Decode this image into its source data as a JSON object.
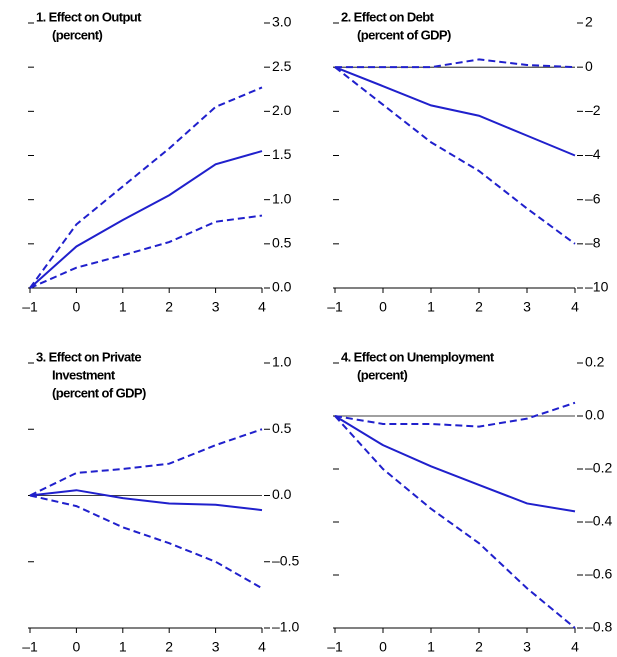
{
  "chart_data": [
    {
      "type": "line",
      "title": [
        "1. Effect on Output",
        "(percent)"
      ],
      "x": [
        -1,
        0,
        1,
        2,
        3,
        4
      ],
      "xlim": [
        -1,
        4
      ],
      "xticks": [
        {
          "value": -1,
          "label": "–1"
        },
        0,
        1,
        2,
        3,
        4
      ],
      "ylim": [
        0,
        3
      ],
      "yticks": [
        {
          "value": 0,
          "label": "0.0"
        },
        0.5,
        {
          "value": 1,
          "label": "1.0"
        },
        1.5,
        {
          "value": 2,
          "label": "2.0"
        },
        2.5,
        {
          "value": 3,
          "label": "3.0"
        }
      ],
      "zero_line": false,
      "series": [
        {
          "color": "#2020cc",
          "dashed": false,
          "values": [
            0,
            0.47,
            0.77,
            1.05,
            1.4,
            1.55
          ]
        },
        {
          "color": "#2020cc",
          "dashed": true,
          "values": [
            0,
            0.72,
            1.15,
            1.58,
            2.05,
            2.27
          ]
        },
        {
          "color": "#2020cc",
          "dashed": true,
          "values": [
            0,
            0.23,
            0.37,
            0.52,
            0.75,
            0.82
          ]
        }
      ]
    },
    {
      "type": "line",
      "title": [
        "2. Effect on Debt",
        "(percent of GDP)"
      ],
      "x": [
        -1,
        0,
        1,
        2,
        3,
        4
      ],
      "xlim": [
        -1,
        4
      ],
      "xticks": [
        {
          "value": -1,
          "label": "–1"
        },
        0,
        1,
        2,
        3,
        4
      ],
      "ylim": [
        -10,
        2
      ],
      "yticks": [
        {
          "value": -10,
          "label": "–10"
        },
        {
          "value": -8,
          "label": "–8"
        },
        {
          "value": -6,
          "label": "–6"
        },
        {
          "value": -4,
          "label": "–4"
        },
        {
          "value": -2,
          "label": "–2"
        },
        0,
        2
      ],
      "zero_line": true,
      "series": [
        {
          "color": "#2020cc",
          "dashed": false,
          "values": [
            0,
            -0.86,
            -1.73,
            -2.2,
            -3.1,
            -4.0
          ]
        },
        {
          "color": "#2020cc",
          "dashed": true,
          "values": [
            0,
            0,
            0,
            0.35,
            0.1,
            0
          ]
        },
        {
          "color": "#2020cc",
          "dashed": true,
          "values": [
            0,
            -1.7,
            -3.4,
            -4.7,
            -6.4,
            -8.0
          ]
        }
      ]
    },
    {
      "type": "line",
      "title": [
        "3. Effect on Private",
        "Investment",
        "(percent of GDP)"
      ],
      "x": [
        -1,
        0,
        1,
        2,
        3,
        4
      ],
      "xlim": [
        -1,
        4
      ],
      "xticks": [
        {
          "value": -1,
          "label": "–1"
        },
        0,
        1,
        2,
        3,
        4
      ],
      "ylim": [
        -1,
        1
      ],
      "yticks": [
        {
          "value": -1,
          "label": "–1.0"
        },
        {
          "value": -0.5,
          "label": "–0.5"
        },
        {
          "value": 0,
          "label": "0.0"
        },
        0.5,
        {
          "value": 1,
          "label": "1.0"
        }
      ],
      "zero_line": true,
      "series": [
        {
          "color": "#2020cc",
          "dashed": false,
          "values": [
            0,
            0.04,
            -0.02,
            -0.06,
            -0.07,
            -0.11
          ]
        },
        {
          "color": "#2020cc",
          "dashed": true,
          "values": [
            0,
            0.17,
            0.2,
            0.24,
            0.38,
            0.5
          ]
        },
        {
          "color": "#2020cc",
          "dashed": true,
          "values": [
            0,
            -0.08,
            -0.24,
            -0.36,
            -0.5,
            -0.7
          ]
        }
      ]
    },
    {
      "type": "line",
      "title": [
        "4. Effect on Unemployment",
        "(percent)"
      ],
      "x": [
        -1,
        0,
        1,
        2,
        3,
        4
      ],
      "xlim": [
        -1,
        4
      ],
      "xticks": [
        {
          "value": -1,
          "label": "–1"
        },
        0,
        1,
        2,
        3,
        4
      ],
      "ylim": [
        -0.8,
        0.2
      ],
      "yticks": [
        {
          "value": -0.8,
          "label": "–0.8"
        },
        {
          "value": -0.6,
          "label": "–0.6"
        },
        {
          "value": -0.4,
          "label": "–0.4"
        },
        {
          "value": -0.2,
          "label": "–0.2"
        },
        {
          "value": 0,
          "label": "0.0"
        },
        0.2
      ],
      "zero_line": true,
      "series": [
        {
          "color": "#2020cc",
          "dashed": false,
          "values": [
            0,
            -0.11,
            -0.19,
            -0.26,
            -0.33,
            -0.36
          ]
        },
        {
          "color": "#2020cc",
          "dashed": true,
          "values": [
            0,
            -0.03,
            -0.03,
            -0.04,
            -0.01,
            0.05
          ]
        },
        {
          "color": "#2020cc",
          "dashed": true,
          "values": [
            0,
            -0.2,
            -0.35,
            -0.48,
            -0.65,
            -0.8
          ]
        }
      ]
    }
  ]
}
